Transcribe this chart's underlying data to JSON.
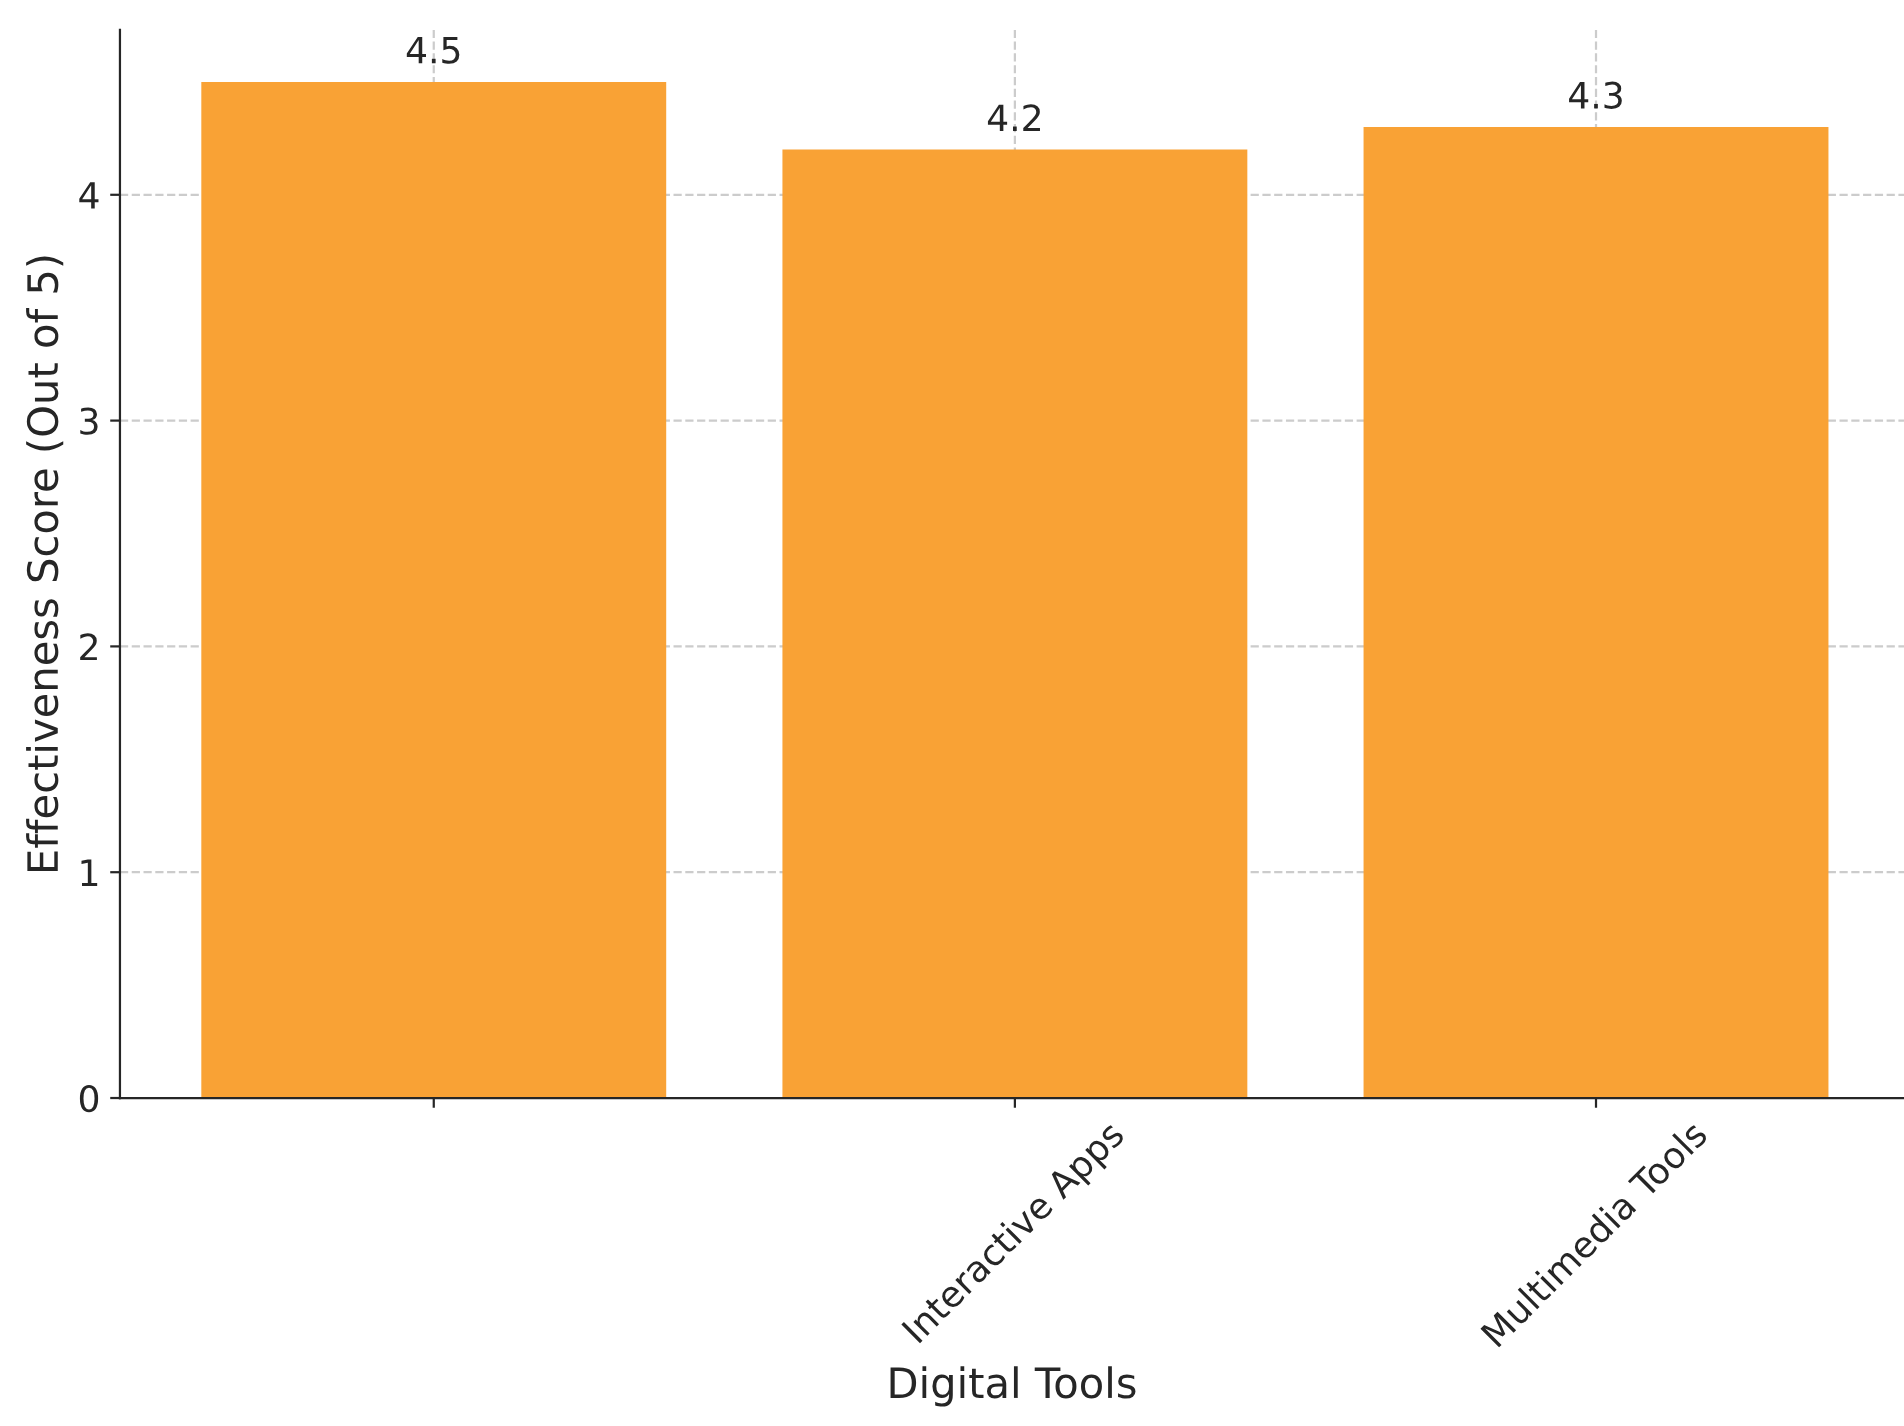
{
  "chart_data": {
    "type": "bar",
    "xlabel": "Digital Tools",
    "ylabel": "Effectiveness Score (Out of 5)",
    "categories": [
      null,
      "Interactive Apps",
      "Multimedia Tools"
    ],
    "values": [
      4.5,
      4.2,
      4.3
    ],
    "color": "#f9a235",
    "ylim": [
      0,
      4.73
    ],
    "yticks": [
      0,
      1,
      2,
      3,
      4
    ],
    "grid": true,
    "data_labels": true
  }
}
